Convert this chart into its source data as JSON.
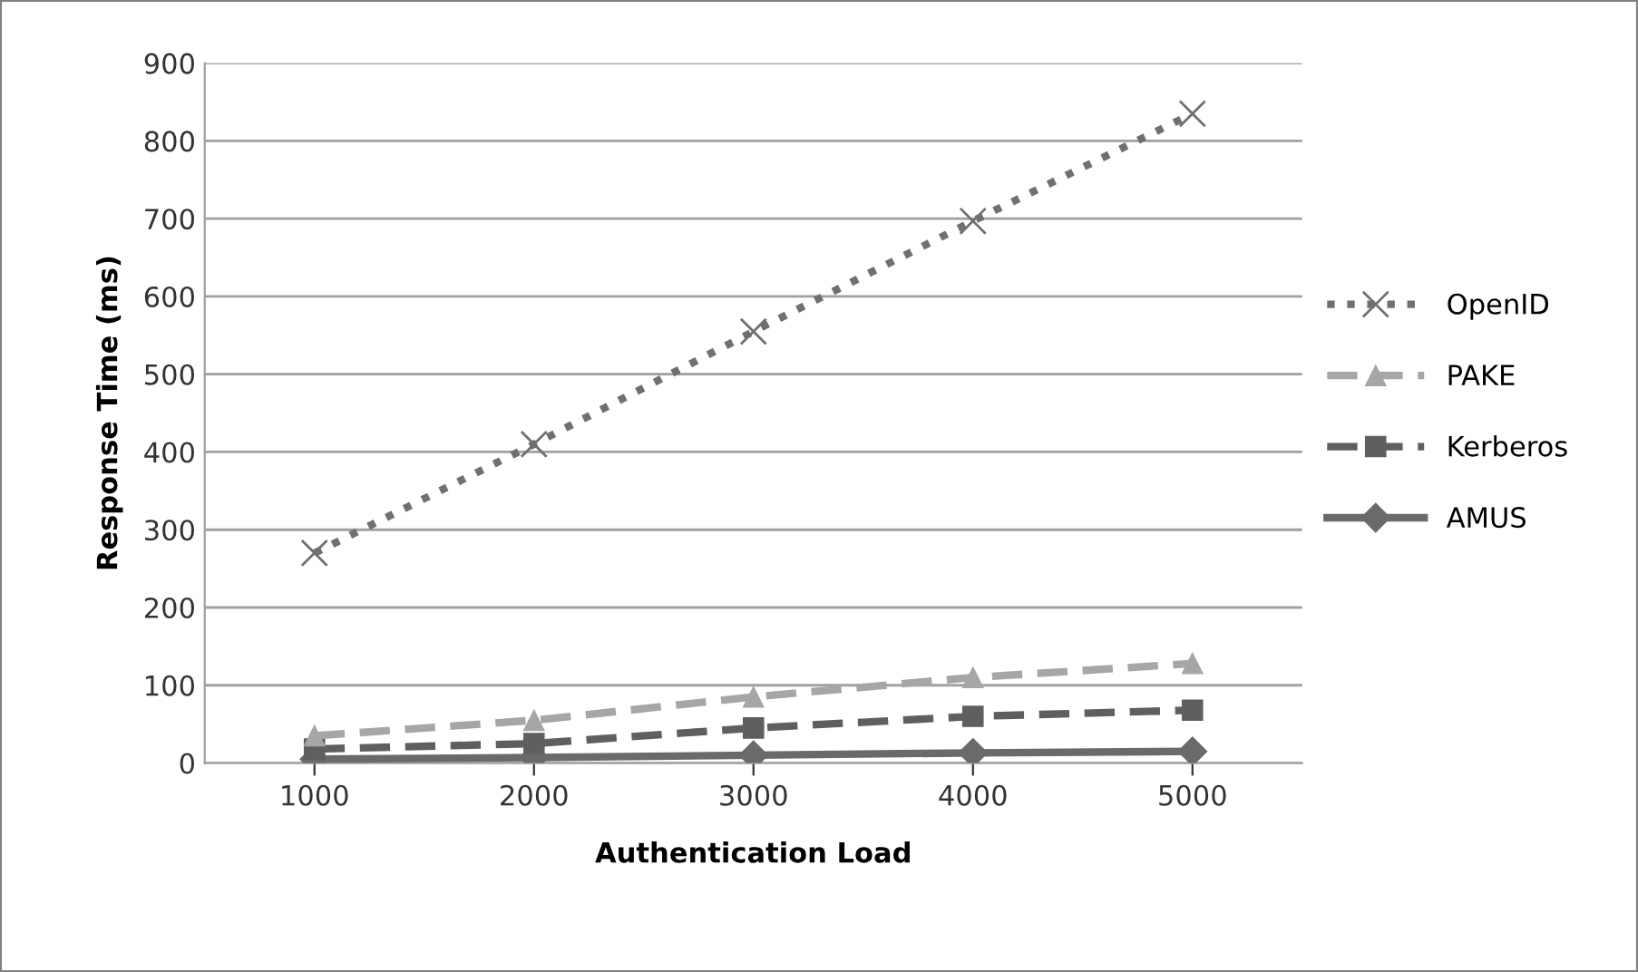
{
  "chart_data": {
    "type": "line",
    "xlabel": "Authentication Load",
    "ylabel": "Response Time (ms)",
    "categories": [
      "1000",
      "2000",
      "3000",
      "4000",
      "5000"
    ],
    "series": [
      {
        "name": "OpenID",
        "color": "#707070",
        "marker": "cross",
        "line_style": "dotted",
        "values": [
          270,
          410,
          555,
          697,
          835
        ]
      },
      {
        "name": "PAKE",
        "color": "#a6a6a6",
        "marker": "triangle",
        "line_style": "dashed",
        "values": [
          35,
          55,
          85,
          110,
          128
        ]
      },
      {
        "name": "Kerberos",
        "color": "#5f5f5f",
        "marker": "square",
        "line_style": "dashed",
        "values": [
          18,
          25,
          45,
          60,
          68
        ]
      },
      {
        "name": "AMUS",
        "color": "#6a6a6a",
        "marker": "diamond",
        "line_style": "solid",
        "values": [
          5,
          7,
          10,
          13,
          15
        ]
      }
    ],
    "ylim": [
      0,
      900
    ],
    "yticks": [
      0,
      100,
      200,
      300,
      400,
      500,
      600,
      700,
      800,
      900
    ],
    "grid": "y",
    "legend": "right"
  }
}
